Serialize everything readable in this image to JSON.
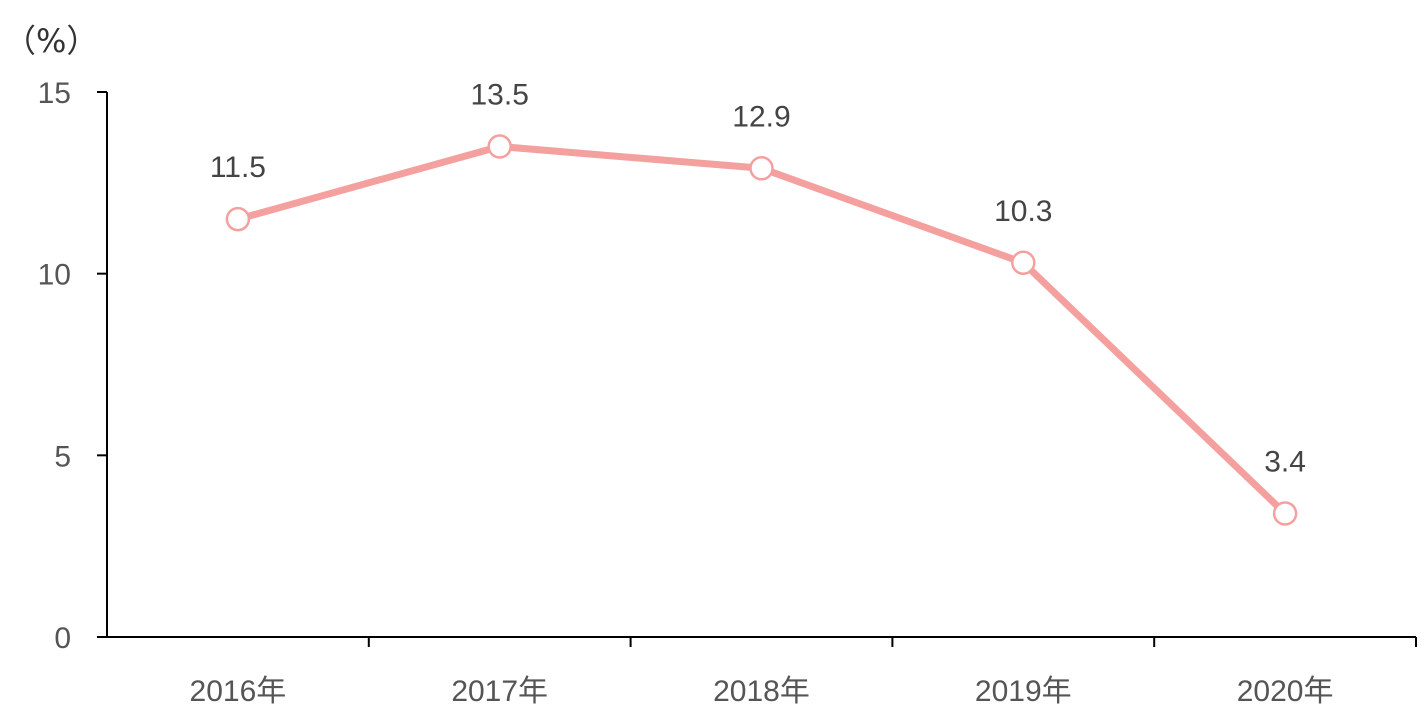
{
  "chart_data": {
    "type": "line",
    "unit_label": "（%）",
    "categories": [
      "2016年",
      "2017年",
      "2018年",
      "2019年",
      "2020年"
    ],
    "series": [
      {
        "values": [
          11.5,
          13.5,
          12.9,
          10.3,
          3.4
        ]
      }
    ],
    "data_labels": [
      "11.5",
      "13.5",
      "12.9",
      "10.3",
      "3.4"
    ],
    "y_ticks": [
      "0",
      "5",
      "10",
      "15"
    ],
    "ylim": [
      0,
      15
    ],
    "grid": false,
    "legend": "none",
    "colors": {
      "line": "#F4A09E",
      "marker_fill": "#FFFFFF",
      "axis": "#000000"
    }
  }
}
